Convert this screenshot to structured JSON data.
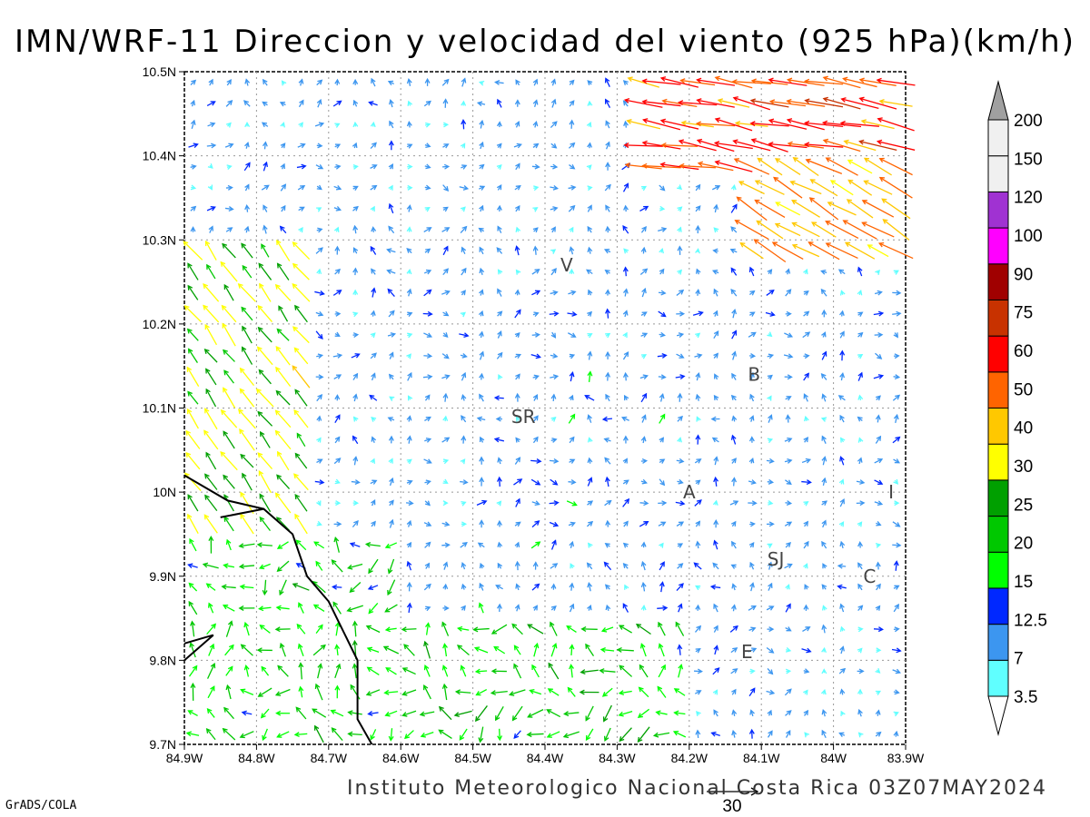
{
  "title": "IMN/WRF-11 Direccion y velocidad del viento (925 hPa)(km/h)",
  "footer": "Instituto Meteorologico Nacional Costa Rica 03Z07MAY2024",
  "credit": "GrADS/COLA",
  "reference_vector": {
    "label": "30",
    "speed": 30
  },
  "map": {
    "lon_range": [
      -84.9,
      -83.9
    ],
    "lat_range": [
      9.7,
      10.5
    ],
    "x_tick_labels": [
      "84.9W",
      "84.8W",
      "84.7W",
      "84.6W",
      "84.5W",
      "84.4W",
      "84.3W",
      "84.2W",
      "84.1W",
      "84W",
      "83.9W"
    ],
    "y_tick_labels": [
      "9.7N",
      "9.8N",
      "9.9N",
      "10N",
      "10.1N",
      "10.2N",
      "10.3N",
      "10.4N",
      "10.5N"
    ],
    "places": [
      {
        "label": "V",
        "lon": -84.37,
        "lat": 10.27
      },
      {
        "label": "B",
        "lon": -84.11,
        "lat": 10.14
      },
      {
        "label": "SR",
        "lon": -84.43,
        "lat": 10.09
      },
      {
        "label": "A",
        "lon": -84.2,
        "lat": 10.0
      },
      {
        "label": "I",
        "lon": -83.92,
        "lat": 10.0
      },
      {
        "label": "SJ",
        "lon": -84.08,
        "lat": 9.92
      },
      {
        "label": "C",
        "lon": -83.95,
        "lat": 9.9
      },
      {
        "label": "E",
        "lon": -84.12,
        "lat": 9.81
      }
    ],
    "coastline": [
      [
        -84.9,
        10.02
      ],
      [
        -84.84,
        9.99
      ],
      [
        -84.79,
        9.98
      ],
      [
        -84.85,
        9.97
      ],
      [
        -84.79,
        9.98
      ],
      [
        -84.75,
        9.95
      ],
      [
        -84.73,
        9.9
      ],
      [
        -84.7,
        9.87
      ],
      [
        -84.66,
        9.8
      ],
      [
        -84.66,
        9.78
      ],
      [
        -84.66,
        9.73
      ],
      [
        -84.64,
        9.7
      ]
    ],
    "coastline_peninsula": [
      [
        -84.9,
        9.82
      ],
      [
        -84.86,
        9.83
      ],
      [
        -84.9,
        9.8
      ]
    ]
  },
  "colorbar": {
    "levels": [
      "3.5",
      "7",
      "12.5",
      "15",
      "20",
      "25",
      "30",
      "40",
      "50",
      "60",
      "75",
      "90",
      "100",
      "120",
      "150",
      "200"
    ],
    "colors": [
      "#60ffff",
      "#3c96f0",
      "#0028ff",
      "#00ff00",
      "#00c800",
      "#00a000",
      "#ffff00",
      "#ffc800",
      "#ff6400",
      "#ff0000",
      "#c83200",
      "#a00000",
      "#ff00ff",
      "#a032d2",
      "#f0f0f0",
      "#a0a0a0"
    ]
  },
  "wind_field": {
    "units": "km/h",
    "grid_lon_start": -84.9,
    "grid_lon_step": 0.025,
    "grid_lat_start": 9.7,
    "grid_lat_step": 0.025,
    "regions": [
      {
        "name": "northeast jet",
        "lon": [
          -84.28,
          -83.9
        ],
        "lat": [
          10.38,
          10.5
        ],
        "u": -55,
        "v": 10
      },
      {
        "name": "northeast flow",
        "lon": [
          -84.12,
          -83.9
        ],
        "lat": [
          10.28,
          10.4
        ],
        "u": -35,
        "v": 20
      },
      {
        "name": "west coast flow",
        "lon": [
          -84.9,
          -84.72
        ],
        "lat": [
          9.95,
          10.3
        ],
        "u": -15,
        "v": 20
      },
      {
        "name": "southwest flow",
        "lon": [
          -84.9,
          -84.6
        ],
        "lat": [
          9.7,
          9.95
        ],
        "u": -12,
        "v": 8
      },
      {
        "name": "central calm",
        "lon": [
          -84.5,
          -84.15
        ],
        "lat": [
          9.85,
          10.25
        ],
        "u": 2,
        "v": 4
      },
      {
        "name": "south flow",
        "lon": [
          -84.6,
          -84.2
        ],
        "lat": [
          9.7,
          9.85
        ],
        "u": -15,
        "v": 2
      }
    ]
  }
}
